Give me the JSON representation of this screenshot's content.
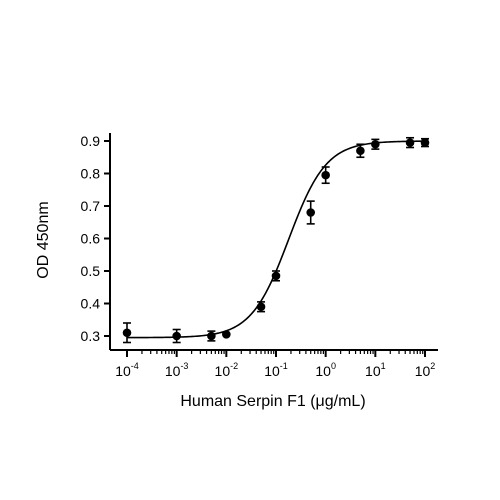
{
  "chart_data": {
    "type": "scatter",
    "xlabel": "Human Serpin F1 (μg/mL)",
    "ylabel": "OD 450nm",
    "xscale": "log",
    "xlim": [
      0.0001,
      100
    ],
    "ylim": [
      0.27,
      0.9
    ],
    "grid": false,
    "x_ticks": [
      {
        "base": "10",
        "exp": "-4",
        "value": 0.0001
      },
      {
        "base": "10",
        "exp": "-3",
        "value": 0.001
      },
      {
        "base": "10",
        "exp": "-2",
        "value": 0.01
      },
      {
        "base": "10",
        "exp": "-1",
        "value": 0.1
      },
      {
        "base": "10",
        "exp": "0",
        "value": 1
      },
      {
        "base": "10",
        "exp": "1",
        "value": 10
      },
      {
        "base": "10",
        "exp": "2",
        "value": 100
      }
    ],
    "y_ticks": [
      "0.3",
      "0.4",
      "0.5",
      "0.6",
      "0.7",
      "0.8",
      "0.9"
    ],
    "series": [
      {
        "x": [
          0.0001,
          0.001,
          0.005,
          0.01,
          0.05,
          0.1,
          0.5,
          1,
          5,
          10,
          50,
          100
        ],
        "y": [
          0.31,
          0.3,
          0.3,
          0.305,
          0.39,
          0.485,
          0.68,
          0.795,
          0.87,
          0.89,
          0.895,
          0.895
        ],
        "error": [
          0.03,
          0.02,
          0.015,
          0.0,
          0.015,
          0.015,
          0.035,
          0.025,
          0.02,
          0.015,
          0.015,
          0.012
        ]
      }
    ],
    "fit_curve": {
      "bottom": 0.295,
      "top": 0.9,
      "ec50": 0.18,
      "hill": 1.15
    }
  }
}
